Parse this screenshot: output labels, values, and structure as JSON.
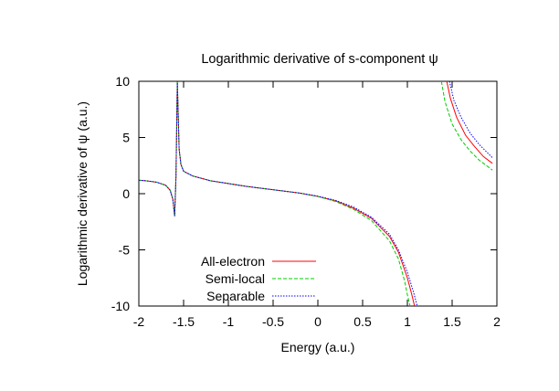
{
  "chart_data": {
    "type": "line",
    "title": "Logarithmic derivative of s-component ψ",
    "xlabel": "Energy (a.u.)",
    "ylabel": "Logarithmic derivative of ψ (a.u.)",
    "xlim": [
      -2,
      2
    ],
    "ylim": [
      -10,
      10
    ],
    "xticks": [
      -2,
      -1.5,
      -1,
      -0.5,
      0,
      0.5,
      1,
      1.5,
      2
    ],
    "yticks": [
      -10,
      -5,
      0,
      5,
      10
    ],
    "xtick_labels": [
      "-2",
      "-1.5",
      "-1",
      "-0.5",
      "0",
      "0.5",
      "1",
      "1.5",
      "2"
    ],
    "ytick_labels": [
      "-10",
      "-5",
      "0",
      "5",
      "10"
    ],
    "grid": false,
    "legend_position": "bottom-left",
    "series": [
      {
        "name": "All-electron",
        "color": "#ff0000",
        "dash": "solid",
        "segments": [
          [
            [
              -2,
              1.2
            ],
            [
              -1.9,
              1.13
            ],
            [
              -1.8,
              1.02
            ],
            [
              -1.7,
              0.75
            ],
            [
              -1.65,
              0.3
            ],
            [
              -1.62,
              -0.5
            ],
            [
              -1.6,
              -2.0
            ],
            [
              -1.585,
              1.5
            ],
            [
              -1.57,
              10
            ],
            [
              -1.55,
              4.0
            ],
            [
              -1.53,
              2.6
            ],
            [
              -1.5,
              2.0
            ],
            [
              -1.4,
              1.58
            ],
            [
              -1.2,
              1.15
            ],
            [
              -1.0,
              0.9
            ],
            [
              -0.8,
              0.65
            ],
            [
              -0.6,
              0.45
            ],
            [
              -0.4,
              0.25
            ],
            [
              -0.2,
              0.05
            ],
            [
              0,
              -0.25
            ],
            [
              0.2,
              -0.65
            ],
            [
              0.4,
              -1.3
            ],
            [
              0.6,
              -2.2
            ],
            [
              0.8,
              -3.8
            ],
            [
              0.9,
              -5.2
            ],
            [
              1.0,
              -7.5
            ],
            [
              1.05,
              -9.0
            ],
            [
              1.08,
              -10
            ]
          ],
          [
            [
              1.44,
              10
            ],
            [
              1.48,
              8.5
            ],
            [
              1.55,
              6.8
            ],
            [
              1.65,
              5.2
            ],
            [
              1.75,
              4.2
            ],
            [
              1.85,
              3.3
            ],
            [
              1.95,
              2.7
            ]
          ]
        ]
      },
      {
        "name": "Semi-local",
        "color": "#00cc00",
        "dash": "4,2",
        "segments": [
          [
            [
              -2,
              1.2
            ],
            [
              -1.9,
              1.13
            ],
            [
              -1.8,
              1.02
            ],
            [
              -1.7,
              0.75
            ],
            [
              -1.65,
              0.3
            ],
            [
              -1.62,
              -0.5
            ],
            [
              -1.6,
              -2.0
            ],
            [
              -1.585,
              1.5
            ],
            [
              -1.57,
              10
            ],
            [
              -1.55,
              4.0
            ],
            [
              -1.53,
              2.6
            ],
            [
              -1.5,
              2.0
            ],
            [
              -1.4,
              1.58
            ],
            [
              -1.2,
              1.15
            ],
            [
              -1.0,
              0.9
            ],
            [
              -0.8,
              0.65
            ],
            [
              -0.6,
              0.45
            ],
            [
              -0.4,
              0.25
            ],
            [
              -0.2,
              0.05
            ],
            [
              0,
              -0.25
            ],
            [
              0.2,
              -0.7
            ],
            [
              0.4,
              -1.4
            ],
            [
              0.6,
              -2.4
            ],
            [
              0.8,
              -4.2
            ],
            [
              0.9,
              -5.8
            ],
            [
              0.97,
              -7.8
            ],
            [
              1.0,
              -9.0
            ],
            [
              1.03,
              -10
            ]
          ],
          [
            [
              1.38,
              10
            ],
            [
              1.42,
              8.2
            ],
            [
              1.5,
              6.2
            ],
            [
              1.6,
              4.8
            ],
            [
              1.7,
              3.8
            ],
            [
              1.8,
              3.0
            ],
            [
              1.95,
              2.1
            ]
          ]
        ]
      },
      {
        "name": "Separable",
        "color": "#0000ff",
        "dash": "1.5,1.5",
        "segments": [
          [
            [
              -2,
              1.2
            ],
            [
              -1.9,
              1.13
            ],
            [
              -1.8,
              1.02
            ],
            [
              -1.7,
              0.75
            ],
            [
              -1.65,
              0.3
            ],
            [
              -1.62,
              -0.5
            ],
            [
              -1.6,
              -2.0
            ],
            [
              -1.585,
              1.5
            ],
            [
              -1.57,
              10
            ],
            [
              -1.55,
              4.0
            ],
            [
              -1.53,
              2.6
            ],
            [
              -1.5,
              2.0
            ],
            [
              -1.4,
              1.58
            ],
            [
              -1.2,
              1.15
            ],
            [
              -1.0,
              0.9
            ],
            [
              -0.8,
              0.65
            ],
            [
              -0.6,
              0.45
            ],
            [
              -0.4,
              0.25
            ],
            [
              -0.2,
              0.05
            ],
            [
              0,
              -0.22
            ],
            [
              0.2,
              -0.6
            ],
            [
              0.4,
              -1.2
            ],
            [
              0.6,
              -2.1
            ],
            [
              0.8,
              -3.6
            ],
            [
              0.9,
              -5.0
            ],
            [
              1.0,
              -7.0
            ],
            [
              1.07,
              -8.8
            ],
            [
              1.11,
              -10
            ]
          ],
          [
            [
              1.47,
              10
            ],
            [
              1.52,
              8.3
            ],
            [
              1.6,
              6.8
            ],
            [
              1.7,
              5.4
            ],
            [
              1.8,
              4.4
            ],
            [
              1.95,
              3.2
            ]
          ]
        ]
      }
    ]
  }
}
